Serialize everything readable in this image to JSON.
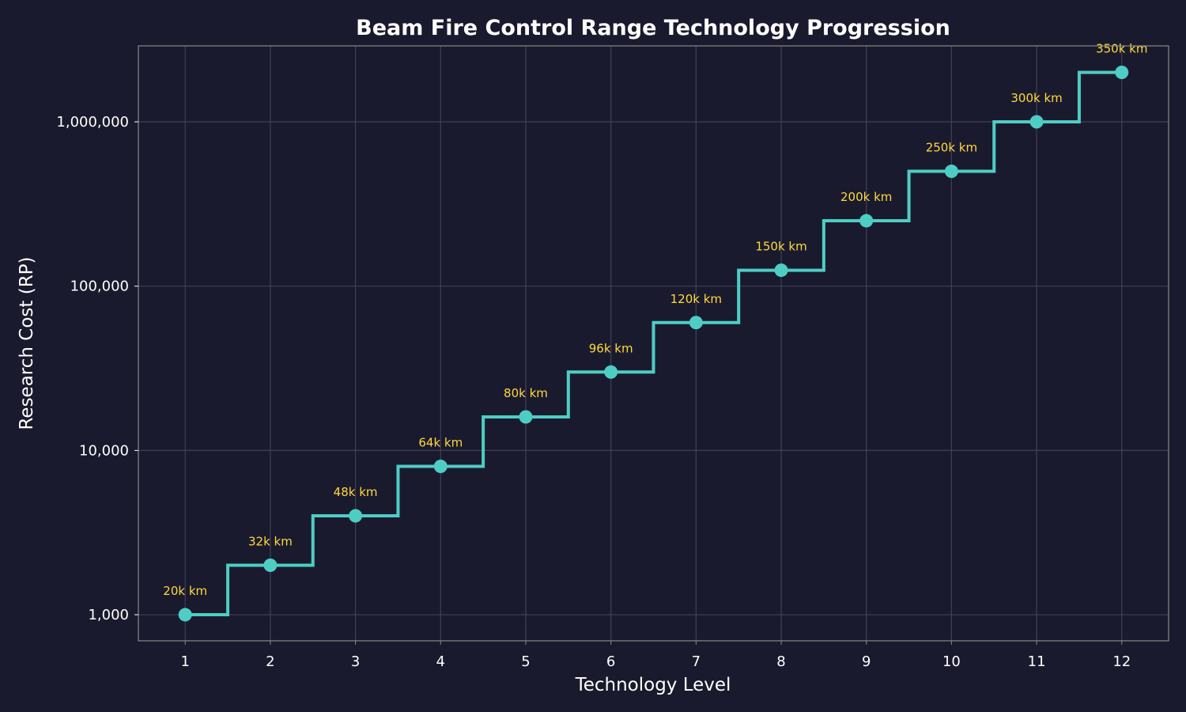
{
  "chart_data": {
    "type": "line",
    "step": "mid",
    "title": "Beam Fire Control Range Technology Progression",
    "xlabel": "Technology Level",
    "ylabel": "Research Cost (RP)",
    "x": [
      1,
      2,
      3,
      4,
      5,
      6,
      7,
      8,
      9,
      10,
      11,
      12
    ],
    "series": [
      {
        "values": [
          1000,
          2000,
          4000,
          8000,
          16000,
          30000,
          60000,
          125000,
          250000,
          500000,
          1000000,
          2000000
        ]
      }
    ],
    "data_labels": [
      "20k km",
      "32k km",
      "48k km",
      "64k km",
      "80k km",
      "96k km",
      "120k km",
      "150k km",
      "200k km",
      "250k km",
      "300k km",
      "350k km"
    ],
    "xticks": [
      "1",
      "2",
      "3",
      "4",
      "5",
      "6",
      "7",
      "8",
      "9",
      "10",
      "11",
      "12"
    ],
    "yticks": [
      {
        "value": 1000,
        "label": "1,000"
      },
      {
        "value": 10000,
        "label": "10,000"
      },
      {
        "value": 100000,
        "label": "100,000"
      },
      {
        "value": 1000000,
        "label": "1,000,000"
      }
    ],
    "xlim": [
      0.45,
      12.55
    ],
    "ylim": [
      694,
      2900000
    ],
    "yscale": "log",
    "grid": true,
    "colors": {
      "background": "#1a1a2e",
      "line": "#4ecdc4",
      "label": "#ffd93d",
      "text": "#ffffff",
      "grid": "#4a4a5e",
      "spine": "#888888"
    }
  }
}
